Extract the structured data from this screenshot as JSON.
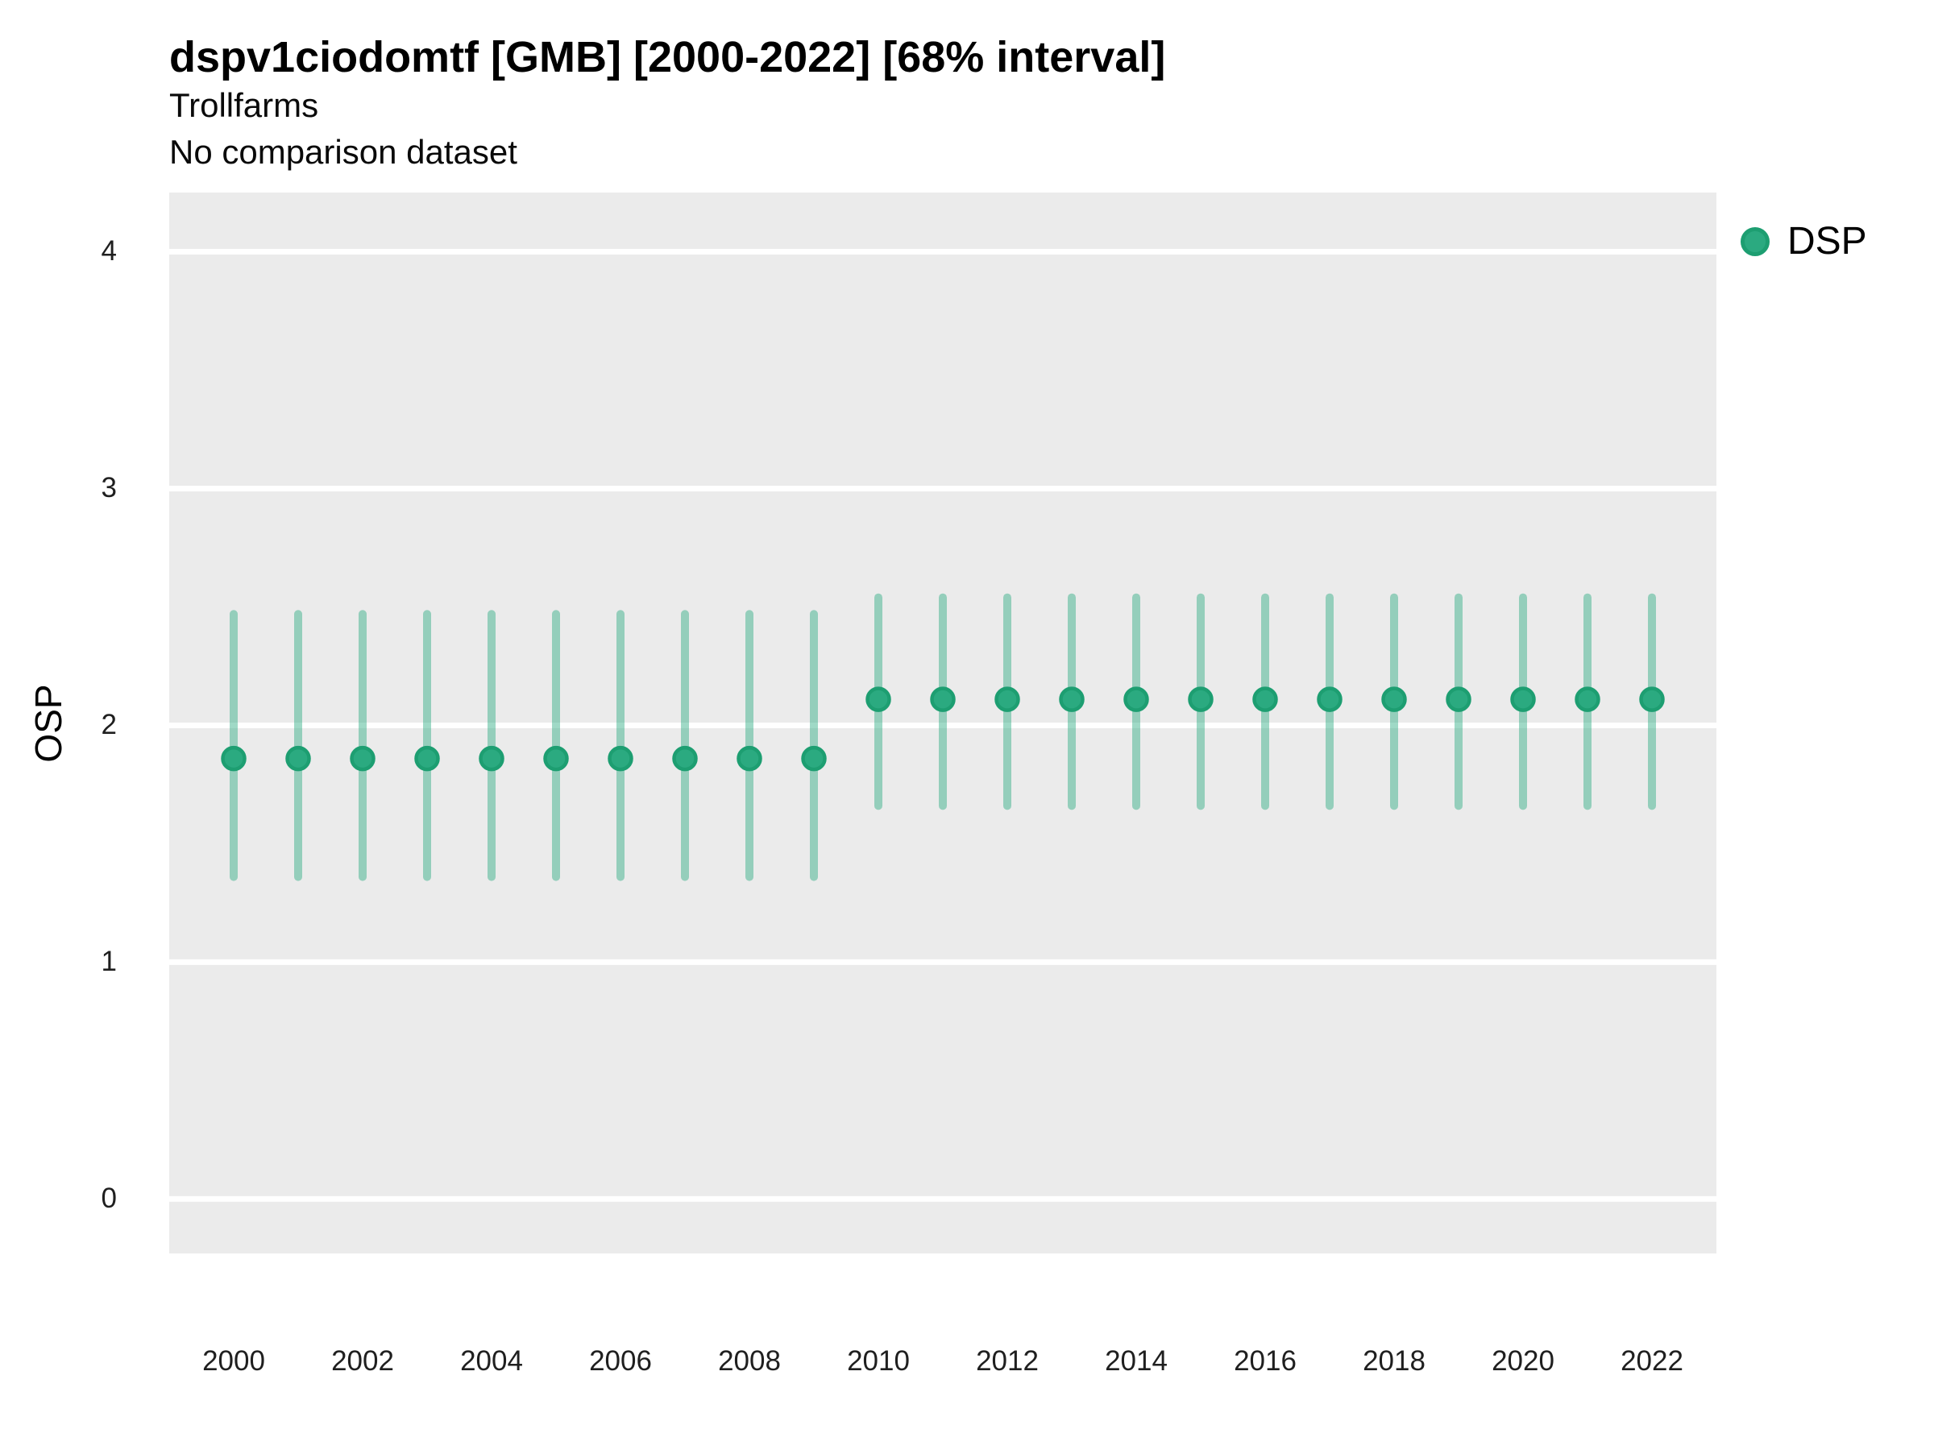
{
  "header": {
    "title": "dspv1ciodomtf [GMB] [2000-2022] [68% interval]",
    "subtitle1": "Trollfarms",
    "subtitle2": "No comparison dataset"
  },
  "axes": {
    "ylabel": "OSP"
  },
  "legend": {
    "items": [
      {
        "label": "DSP",
        "fill": "#2BAA80",
        "ring": "#1D9E71"
      }
    ]
  },
  "colors": {
    "panel_background": "#EBEBEB",
    "gridline": "#FFFFFF",
    "point_fill": "#2BAA80",
    "point_stroke": "#1D9E71",
    "interval_line": "rgba(43,170,128,0.45)",
    "tick_text": "#1f1f1f"
  },
  "chart_data": {
    "type": "pointrange",
    "title": "dspv1ciodomtf [GMB] [2000-2022] [68% interval]",
    "subtitle": [
      "Trollfarms",
      "No comparison dataset"
    ],
    "interval_level": "68%",
    "xlabel": "",
    "ylabel": "OSP",
    "grid": "major-horizontal-only",
    "legend_position": "right-top",
    "xlim": [
      1999,
      2023
    ],
    "ylim": [
      -0.23,
      4.25
    ],
    "xticks": [
      2000,
      2002,
      2004,
      2006,
      2008,
      2010,
      2012,
      2014,
      2016,
      2018,
      2020,
      2022
    ],
    "yticks": [
      0,
      1,
      2,
      3,
      4
    ],
    "series": [
      {
        "name": "DSP",
        "points": [
          {
            "x": 2000,
            "y": 1.86,
            "lo": 1.36,
            "hi": 2.47
          },
          {
            "x": 2001,
            "y": 1.86,
            "lo": 1.36,
            "hi": 2.47
          },
          {
            "x": 2002,
            "y": 1.86,
            "lo": 1.36,
            "hi": 2.47
          },
          {
            "x": 2003,
            "y": 1.86,
            "lo": 1.36,
            "hi": 2.47
          },
          {
            "x": 2004,
            "y": 1.86,
            "lo": 1.36,
            "hi": 2.47
          },
          {
            "x": 2005,
            "y": 1.86,
            "lo": 1.36,
            "hi": 2.47
          },
          {
            "x": 2006,
            "y": 1.86,
            "lo": 1.36,
            "hi": 2.47
          },
          {
            "x": 2007,
            "y": 1.86,
            "lo": 1.36,
            "hi": 2.47
          },
          {
            "x": 2008,
            "y": 1.86,
            "lo": 1.36,
            "hi": 2.47
          },
          {
            "x": 2009,
            "y": 1.86,
            "lo": 1.36,
            "hi": 2.47
          },
          {
            "x": 2010,
            "y": 2.11,
            "lo": 1.66,
            "hi": 2.54
          },
          {
            "x": 2011,
            "y": 2.11,
            "lo": 1.66,
            "hi": 2.54
          },
          {
            "x": 2012,
            "y": 2.11,
            "lo": 1.66,
            "hi": 2.54
          },
          {
            "x": 2013,
            "y": 2.11,
            "lo": 1.66,
            "hi": 2.54
          },
          {
            "x": 2014,
            "y": 2.11,
            "lo": 1.66,
            "hi": 2.54
          },
          {
            "x": 2015,
            "y": 2.11,
            "lo": 1.66,
            "hi": 2.54
          },
          {
            "x": 2016,
            "y": 2.11,
            "lo": 1.66,
            "hi": 2.54
          },
          {
            "x": 2017,
            "y": 2.11,
            "lo": 1.66,
            "hi": 2.54
          },
          {
            "x": 2018,
            "y": 2.11,
            "lo": 1.66,
            "hi": 2.54
          },
          {
            "x": 2019,
            "y": 2.11,
            "lo": 1.66,
            "hi": 2.54
          },
          {
            "x": 2020,
            "y": 2.11,
            "lo": 1.66,
            "hi": 2.54
          },
          {
            "x": 2021,
            "y": 2.11,
            "lo": 1.66,
            "hi": 2.54
          },
          {
            "x": 2022,
            "y": 2.11,
            "lo": 1.66,
            "hi": 2.54
          }
        ]
      }
    ]
  }
}
